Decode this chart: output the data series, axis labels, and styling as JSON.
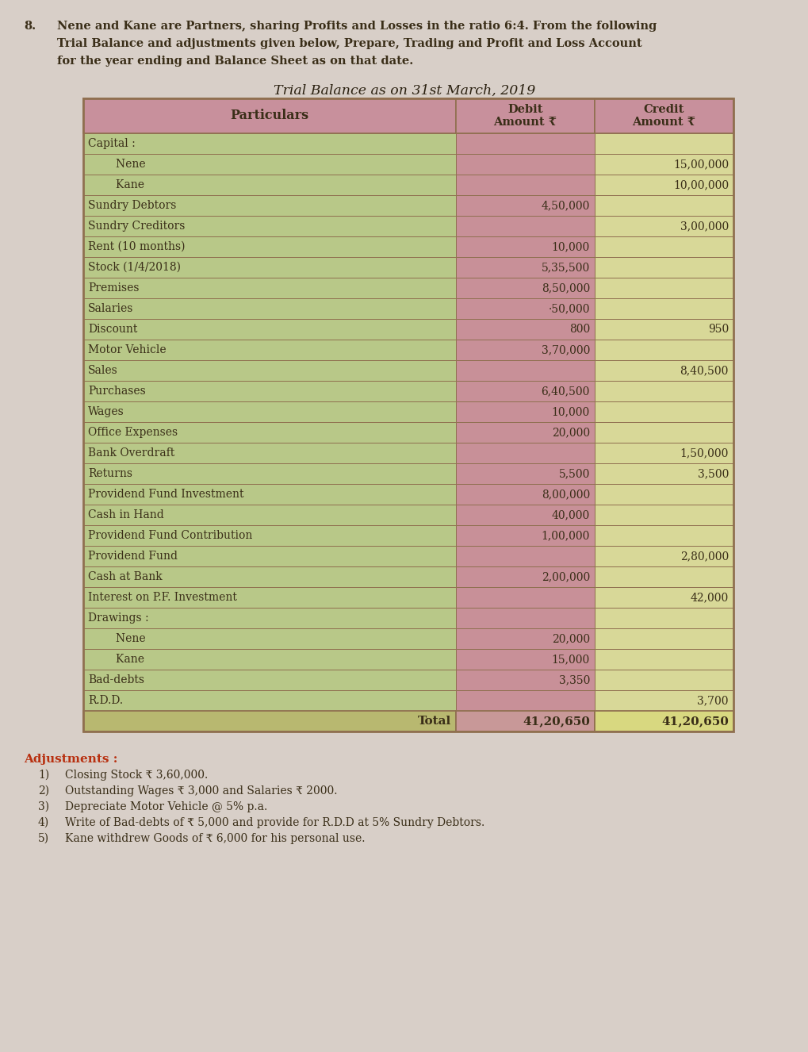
{
  "question_num": "8.",
  "question_line1": "Nene and Kane are Partners, sharing Profits and Losses in the ratio 6:4. From the following",
  "question_line2": "Trial Balance and adjustments given below, Prepare, Trading and Profit and Loss Account",
  "question_line3": "for the year ending and Balance Sheet as on that date.",
  "table_title": "Trial Balance as on 31",
  "table_title_sup": "st",
  "table_title_rest": " March, 2019",
  "header": [
    "Particulars",
    "Debit\nAmount ₹",
    "Credit\nAmount ₹"
  ],
  "rows": [
    [
      "Capital :",
      "",
      ""
    ],
    [
      "        Nene",
      "",
      "15,00,000"
    ],
    [
      "        Kane",
      "",
      "10,00,000"
    ],
    [
      "Sundry Debtors",
      "4,50,000",
      ""
    ],
    [
      "Sundry Creditors",
      "",
      "3,00,000"
    ],
    [
      "Rent (10 months)",
      "10,000",
      ""
    ],
    [
      "Stock (1/4/2018)",
      "5,35,500",
      ""
    ],
    [
      "Premises",
      "8,50,000",
      ""
    ],
    [
      "Salaries",
      "·50,000",
      ""
    ],
    [
      "Discount",
      "800",
      "950"
    ],
    [
      "Motor Vehicle",
      "3,70,000",
      ""
    ],
    [
      "Sales",
      "",
      "8,40,500"
    ],
    [
      "Purchases",
      "6,40,500",
      ""
    ],
    [
      "Wages",
      "10,000",
      ""
    ],
    [
      "Office Expenses",
      "20,000",
      ""
    ],
    [
      "Bank Overdraft",
      "",
      "1,50,000"
    ],
    [
      "Returns",
      "5,500",
      "3,500"
    ],
    [
      "Providend Fund Investment",
      "8,00,000",
      ""
    ],
    [
      "Cash in Hand",
      "40,000",
      ""
    ],
    [
      "Providend Fund Contribution",
      "1,00,000",
      ""
    ],
    [
      "Providend Fund",
      "",
      "2,80,000"
    ],
    [
      "Cash at Bank",
      "2,00,000",
      ""
    ],
    [
      "Interest on P.F. Investment",
      "",
      "42,000"
    ],
    [
      "Drawings :",
      "",
      ""
    ],
    [
      "        Nene",
      "20,000",
      ""
    ],
    [
      "        Kane",
      "15,000",
      ""
    ],
    [
      "Bad-debts",
      "3,350",
      ""
    ],
    [
      "R.D.D.",
      "",
      "3,700"
    ]
  ],
  "total_row": [
    "Total",
    "41,20,650",
    "41,20,650"
  ],
  "adjustments_title": "Adjustments :",
  "adjustments": [
    "Closing Stock ₹ 3,60,000.",
    "Outstanding Wages ₹ 3,000 and Salaries ₹ 2000.",
    "Depreciate Motor Vehicle @ 5% p.a.",
    "Write of Bad-debts of ₹ 5,000 and provide for R.D.D at 5% Sundry Debtors.",
    "Kane withdrew Goods of ₹ 6,000 for his personal use."
  ],
  "page_bg": "#d8cfc8",
  "header_bg": "#c8909c",
  "particulars_bg": "#b8c888",
  "debit_bg": "#c89098",
  "credit_bg": "#d8d898",
  "total_particulars_bg": "#b8b870",
  "total_debit_bg": "#c89898",
  "total_credit_bg": "#d8d880",
  "border_color": "#907050",
  "text_color": "#3a2e18",
  "adj_title_color": "#b83010",
  "table_title_color": "#2a2010",
  "header_text_color": "#3a2e18"
}
